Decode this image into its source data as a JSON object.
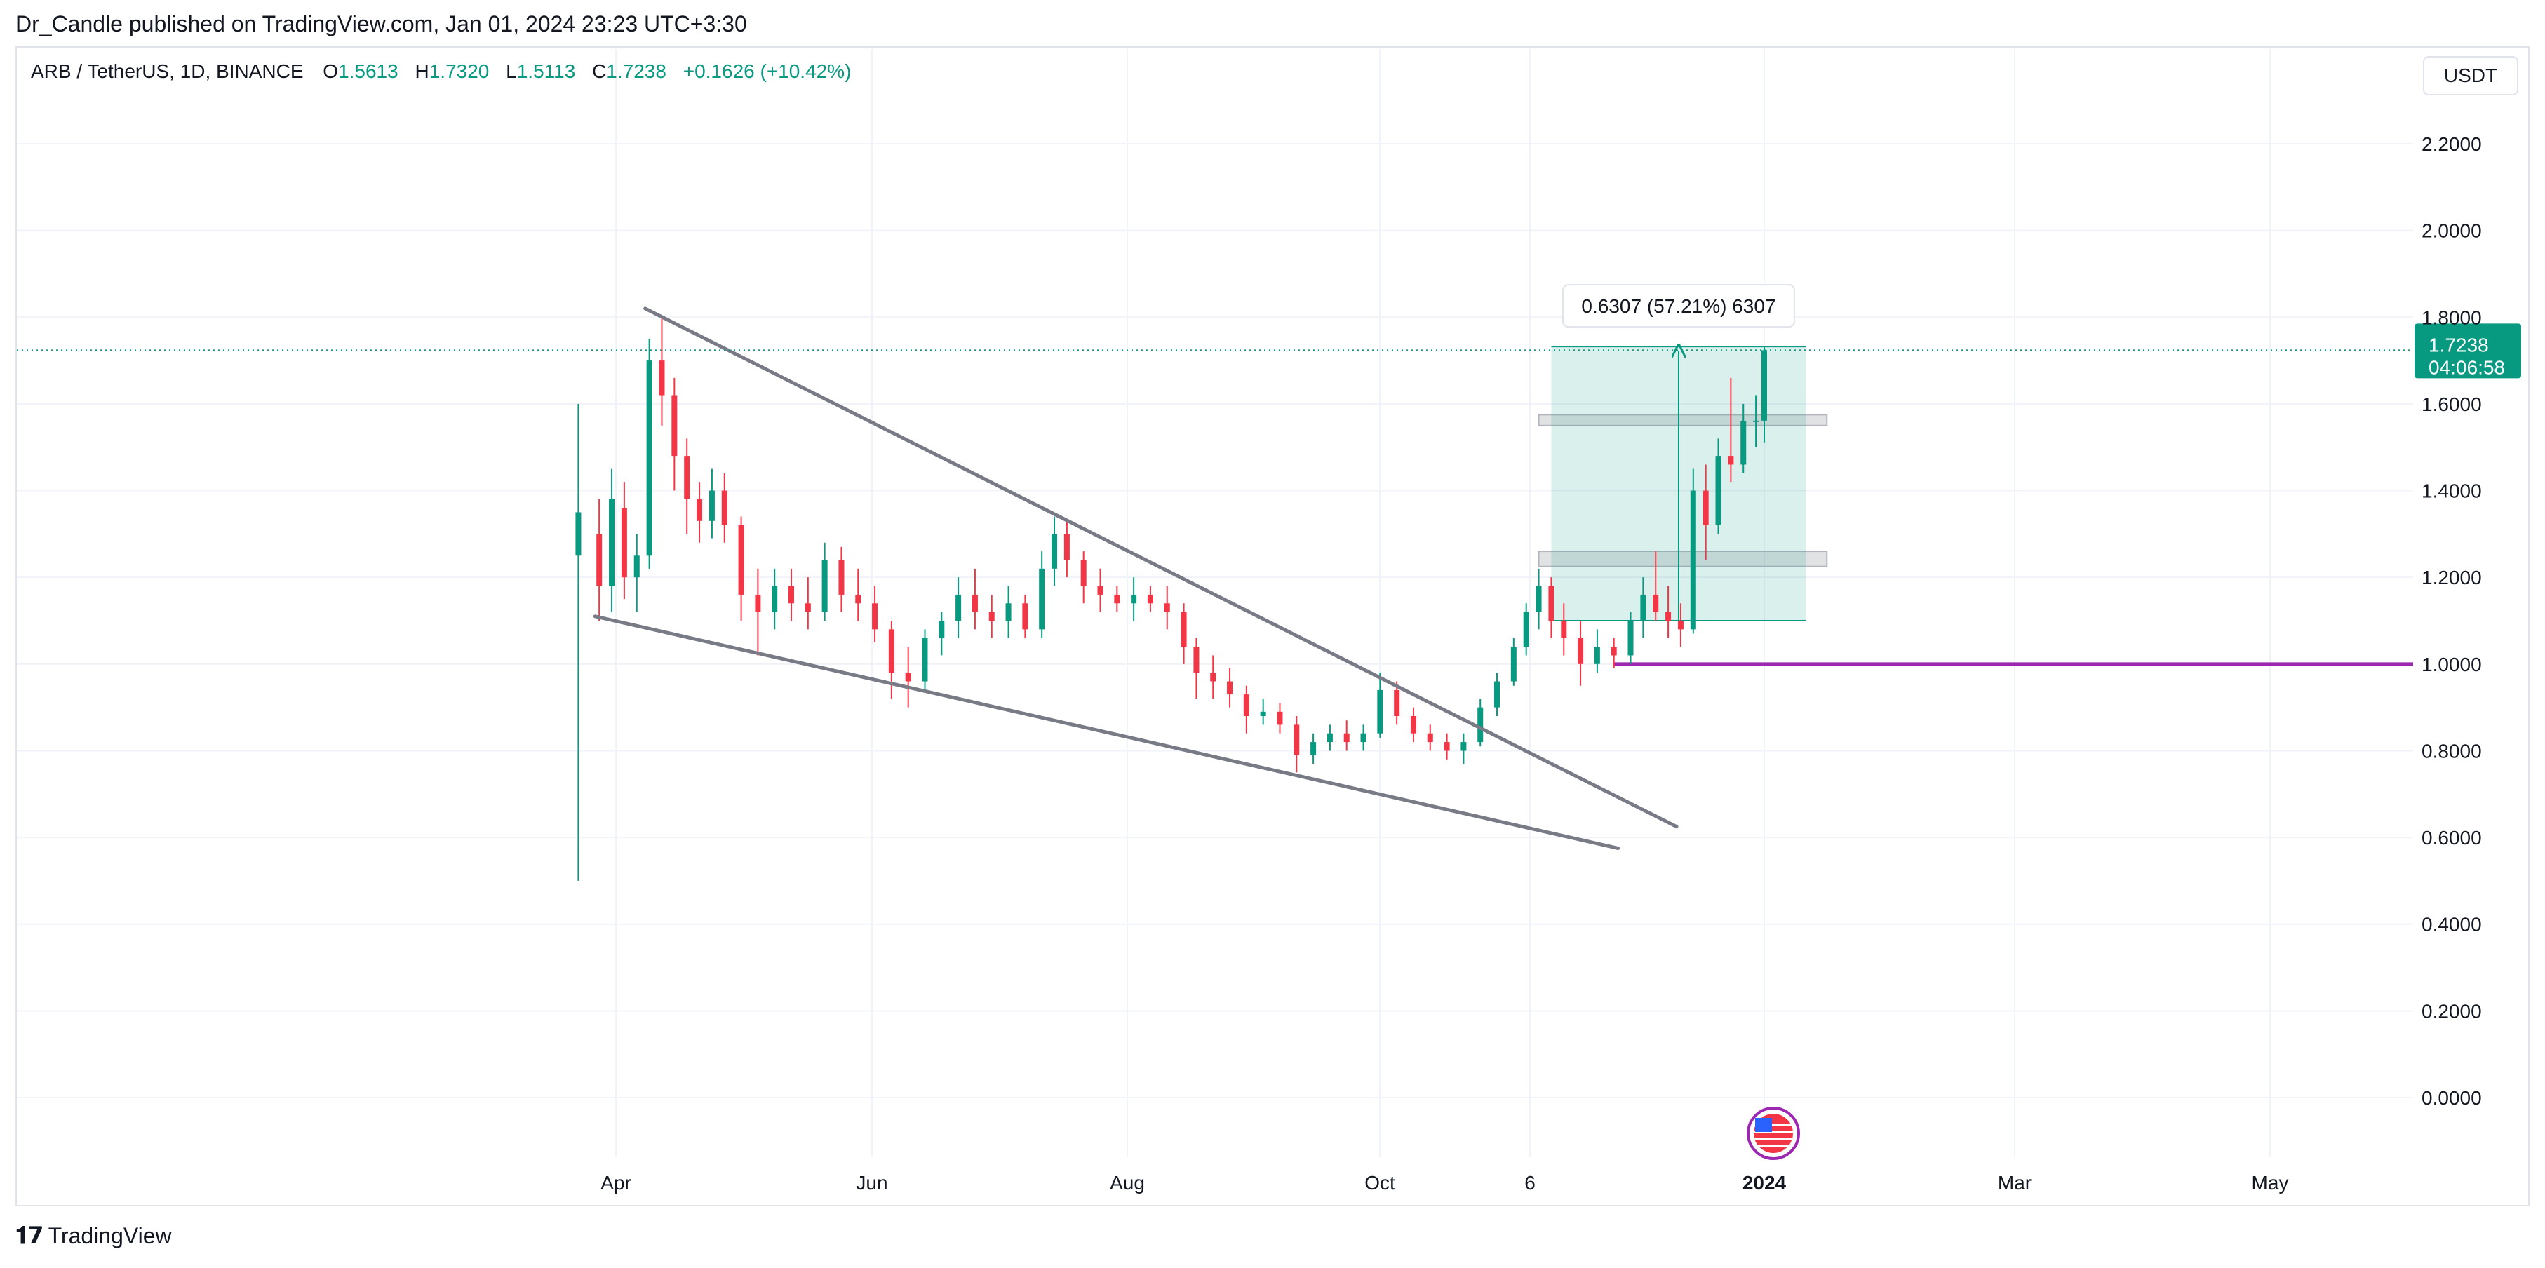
{
  "header": {
    "published": "Dr_Candle published on TradingView.com, Jan 01, 2024 23:23 UTC+3:30"
  },
  "legend": {
    "symbol": "ARB / TetherUS, 1D, BINANCE",
    "o_label": "O",
    "o_value": "1.5613",
    "h_label": "H",
    "h_value": "1.7320",
    "l_label": "L",
    "l_value": "1.5113",
    "c_label": "C",
    "c_value": "1.7238",
    "change": "+0.1626 (+10.42%)"
  },
  "currency": "USDT",
  "footer": {
    "brand": "TradingView"
  },
  "colors": {
    "up": "#089981",
    "down": "#f23645",
    "trendline": "#787b86",
    "support": "#9c27b0",
    "measure_fill": "#089981",
    "grid": "#f0f3fa"
  },
  "chart_data": {
    "type": "candlestick",
    "y_axis": {
      "ticks": [
        "2.2000",
        "2.0000",
        "1.8000",
        "1.6000",
        "1.4000",
        "1.2000",
        "1.0000",
        "0.8000",
        "0.6000",
        "0.4000",
        "0.2000",
        "0.0000"
      ],
      "range": [
        -0.16,
        2.4
      ]
    },
    "x_axis": {
      "ticks": [
        "Apr",
        "Jun",
        "Aug",
        "Oct",
        "6",
        "2024",
        "Mar",
        "May"
      ],
      "bold_tick": "2024"
    },
    "last_price": {
      "value": 1.7238,
      "label": "1.7238",
      "countdown": "04:06:58"
    },
    "measure": {
      "label": "0.6307 (57.21%) 6307",
      "from_price": 1.1,
      "to_price": 1.7323,
      "start_date": "2023-11-11",
      "end_date": "2024-01-11"
    },
    "zones": [
      {
        "from_price": 1.55,
        "to_price": 1.575,
        "start_date": "2023-11-08",
        "end_date": "2024-01-16"
      },
      {
        "from_price": 1.225,
        "to_price": 1.26,
        "start_date": "2023-11-08",
        "end_date": "2024-01-16"
      }
    ],
    "support_line": {
      "price": 1.0,
      "start_date": "2023-11-26"
    },
    "trendlines": [
      {
        "name": "upper",
        "points": [
          [
            "2023-04-08",
            1.82
          ],
          [
            "2023-12-11",
            0.625
          ]
        ]
      },
      {
        "name": "lower",
        "points": [
          [
            "2023-03-27",
            1.11
          ],
          [
            "2023-11-27",
            0.575
          ]
        ]
      }
    ],
    "candles": [
      {
        "date": "2023-03-23",
        "o": 1.25,
        "h": 1.6,
        "l": 0.5,
        "c": 1.35
      },
      {
        "date": "2023-03-28",
        "o": 1.3,
        "h": 1.38,
        "l": 1.1,
        "c": 1.18
      },
      {
        "date": "2023-03-31",
        "o": 1.18,
        "h": 1.45,
        "l": 1.12,
        "c": 1.38
      },
      {
        "date": "2023-04-03",
        "o": 1.36,
        "h": 1.42,
        "l": 1.15,
        "c": 1.2
      },
      {
        "date": "2023-04-06",
        "o": 1.2,
        "h": 1.3,
        "l": 1.12,
        "c": 1.25
      },
      {
        "date": "2023-04-09",
        "o": 1.25,
        "h": 1.75,
        "l": 1.22,
        "c": 1.7
      },
      {
        "date": "2023-04-12",
        "o": 1.7,
        "h": 1.8,
        "l": 1.55,
        "c": 1.62
      },
      {
        "date": "2023-04-15",
        "o": 1.62,
        "h": 1.66,
        "l": 1.4,
        "c": 1.48
      },
      {
        "date": "2023-04-18",
        "o": 1.48,
        "h": 1.52,
        "l": 1.3,
        "c": 1.38
      },
      {
        "date": "2023-04-21",
        "o": 1.38,
        "h": 1.42,
        "l": 1.28,
        "c": 1.33
      },
      {
        "date": "2023-04-24",
        "o": 1.33,
        "h": 1.45,
        "l": 1.29,
        "c": 1.4
      },
      {
        "date": "2023-04-27",
        "o": 1.4,
        "h": 1.44,
        "l": 1.28,
        "c": 1.32
      },
      {
        "date": "2023-05-01",
        "o": 1.32,
        "h": 1.34,
        "l": 1.1,
        "c": 1.16
      },
      {
        "date": "2023-05-05",
        "o": 1.16,
        "h": 1.22,
        "l": 1.02,
        "c": 1.12
      },
      {
        "date": "2023-05-09",
        "o": 1.12,
        "h": 1.22,
        "l": 1.08,
        "c": 1.18
      },
      {
        "date": "2023-05-13",
        "o": 1.18,
        "h": 1.22,
        "l": 1.1,
        "c": 1.14
      },
      {
        "date": "2023-05-17",
        "o": 1.14,
        "h": 1.2,
        "l": 1.08,
        "c": 1.12
      },
      {
        "date": "2023-05-21",
        "o": 1.12,
        "h": 1.28,
        "l": 1.1,
        "c": 1.24
      },
      {
        "date": "2023-05-25",
        "o": 1.24,
        "h": 1.27,
        "l": 1.12,
        "c": 1.16
      },
      {
        "date": "2023-05-29",
        "o": 1.16,
        "h": 1.22,
        "l": 1.1,
        "c": 1.14
      },
      {
        "date": "2023-06-02",
        "o": 1.14,
        "h": 1.18,
        "l": 1.05,
        "c": 1.08
      },
      {
        "date": "2023-06-06",
        "o": 1.08,
        "h": 1.1,
        "l": 0.92,
        "c": 0.98
      },
      {
        "date": "2023-06-10",
        "o": 0.98,
        "h": 1.04,
        "l": 0.9,
        "c": 0.96
      },
      {
        "date": "2023-06-14",
        "o": 0.96,
        "h": 1.08,
        "l": 0.94,
        "c": 1.06
      },
      {
        "date": "2023-06-18",
        "o": 1.06,
        "h": 1.12,
        "l": 1.02,
        "c": 1.1
      },
      {
        "date": "2023-06-22",
        "o": 1.1,
        "h": 1.2,
        "l": 1.06,
        "c": 1.16
      },
      {
        "date": "2023-06-26",
        "o": 1.16,
        "h": 1.22,
        "l": 1.08,
        "c": 1.12
      },
      {
        "date": "2023-06-30",
        "o": 1.12,
        "h": 1.16,
        "l": 1.06,
        "c": 1.1
      },
      {
        "date": "2023-07-04",
        "o": 1.1,
        "h": 1.18,
        "l": 1.06,
        "c": 1.14
      },
      {
        "date": "2023-07-08",
        "o": 1.14,
        "h": 1.16,
        "l": 1.06,
        "c": 1.08
      },
      {
        "date": "2023-07-12",
        "o": 1.08,
        "h": 1.26,
        "l": 1.06,
        "c": 1.22
      },
      {
        "date": "2023-07-15",
        "o": 1.22,
        "h": 1.34,
        "l": 1.18,
        "c": 1.3
      },
      {
        "date": "2023-07-18",
        "o": 1.3,
        "h": 1.33,
        "l": 1.2,
        "c": 1.24
      },
      {
        "date": "2023-07-22",
        "o": 1.24,
        "h": 1.26,
        "l": 1.14,
        "c": 1.18
      },
      {
        "date": "2023-07-26",
        "o": 1.18,
        "h": 1.22,
        "l": 1.12,
        "c": 1.16
      },
      {
        "date": "2023-07-30",
        "o": 1.16,
        "h": 1.18,
        "l": 1.12,
        "c": 1.14
      },
      {
        "date": "2023-08-03",
        "o": 1.14,
        "h": 1.2,
        "l": 1.1,
        "c": 1.16
      },
      {
        "date": "2023-08-07",
        "o": 1.16,
        "h": 1.18,
        "l": 1.12,
        "c": 1.14
      },
      {
        "date": "2023-08-11",
        "o": 1.14,
        "h": 1.18,
        "l": 1.08,
        "c": 1.12
      },
      {
        "date": "2023-08-15",
        "o": 1.12,
        "h": 1.14,
        "l": 1.0,
        "c": 1.04
      },
      {
        "date": "2023-08-18",
        "o": 1.04,
        "h": 1.06,
        "l": 0.92,
        "c": 0.98
      },
      {
        "date": "2023-08-22",
        "o": 0.98,
        "h": 1.02,
        "l": 0.92,
        "c": 0.96
      },
      {
        "date": "2023-08-26",
        "o": 0.96,
        "h": 0.99,
        "l": 0.9,
        "c": 0.93
      },
      {
        "date": "2023-08-30",
        "o": 0.93,
        "h": 0.95,
        "l": 0.84,
        "c": 0.88
      },
      {
        "date": "2023-09-03",
        "o": 0.88,
        "h": 0.92,
        "l": 0.86,
        "c": 0.89
      },
      {
        "date": "2023-09-07",
        "o": 0.89,
        "h": 0.91,
        "l": 0.84,
        "c": 0.86
      },
      {
        "date": "2023-09-11",
        "o": 0.86,
        "h": 0.88,
        "l": 0.75,
        "c": 0.79
      },
      {
        "date": "2023-09-15",
        "o": 0.79,
        "h": 0.84,
        "l": 0.77,
        "c": 0.82
      },
      {
        "date": "2023-09-19",
        "o": 0.82,
        "h": 0.86,
        "l": 0.8,
        "c": 0.84
      },
      {
        "date": "2023-09-23",
        "o": 0.84,
        "h": 0.87,
        "l": 0.8,
        "c": 0.82
      },
      {
        "date": "2023-09-27",
        "o": 0.82,
        "h": 0.86,
        "l": 0.8,
        "c": 0.84
      },
      {
        "date": "2023-10-01",
        "o": 0.84,
        "h": 0.98,
        "l": 0.83,
        "c": 0.94
      },
      {
        "date": "2023-10-05",
        "o": 0.94,
        "h": 0.96,
        "l": 0.86,
        "c": 0.88
      },
      {
        "date": "2023-10-09",
        "o": 0.88,
        "h": 0.9,
        "l": 0.82,
        "c": 0.84
      },
      {
        "date": "2023-10-13",
        "o": 0.84,
        "h": 0.86,
        "l": 0.8,
        "c": 0.82
      },
      {
        "date": "2023-10-17",
        "o": 0.82,
        "h": 0.84,
        "l": 0.78,
        "c": 0.8
      },
      {
        "date": "2023-10-21",
        "o": 0.8,
        "h": 0.84,
        "l": 0.77,
        "c": 0.82
      },
      {
        "date": "2023-10-25",
        "o": 0.82,
        "h": 0.92,
        "l": 0.81,
        "c": 0.9
      },
      {
        "date": "2023-10-29",
        "o": 0.9,
        "h": 0.98,
        "l": 0.88,
        "c": 0.96
      },
      {
        "date": "2023-11-02",
        "o": 0.96,
        "h": 1.06,
        "l": 0.95,
        "c": 1.04
      },
      {
        "date": "2023-11-05",
        "o": 1.04,
        "h": 1.14,
        "l": 1.02,
        "c": 1.12
      },
      {
        "date": "2023-11-08",
        "o": 1.12,
        "h": 1.22,
        "l": 1.08,
        "c": 1.18
      },
      {
        "date": "2023-11-11",
        "o": 1.18,
        "h": 1.2,
        "l": 1.06,
        "c": 1.1
      },
      {
        "date": "2023-11-14",
        "o": 1.1,
        "h": 1.14,
        "l": 1.02,
        "c": 1.06
      },
      {
        "date": "2023-11-18",
        "o": 1.06,
        "h": 1.1,
        "l": 0.95,
        "c": 1.0
      },
      {
        "date": "2023-11-22",
        "o": 1.0,
        "h": 1.08,
        "l": 0.98,
        "c": 1.04
      },
      {
        "date": "2023-11-26",
        "o": 1.04,
        "h": 1.06,
        "l": 0.99,
        "c": 1.02
      },
      {
        "date": "2023-11-30",
        "o": 1.02,
        "h": 1.12,
        "l": 1.0,
        "c": 1.1
      },
      {
        "date": "2023-12-03",
        "o": 1.1,
        "h": 1.2,
        "l": 1.06,
        "c": 1.16
      },
      {
        "date": "2023-12-06",
        "o": 1.16,
        "h": 1.26,
        "l": 1.1,
        "c": 1.12
      },
      {
        "date": "2023-12-09",
        "o": 1.12,
        "h": 1.18,
        "l": 1.06,
        "c": 1.1
      },
      {
        "date": "2023-12-12",
        "o": 1.1,
        "h": 1.14,
        "l": 1.04,
        "c": 1.08
      },
      {
        "date": "2023-12-15",
        "o": 1.08,
        "h": 1.45,
        "l": 1.07,
        "c": 1.4
      },
      {
        "date": "2023-12-18",
        "o": 1.4,
        "h": 1.46,
        "l": 1.24,
        "c": 1.32
      },
      {
        "date": "2023-12-21",
        "o": 1.32,
        "h": 1.52,
        "l": 1.3,
        "c": 1.48
      },
      {
        "date": "2023-12-24",
        "o": 1.48,
        "h": 1.66,
        "l": 1.42,
        "c": 1.46
      },
      {
        "date": "2023-12-27",
        "o": 1.46,
        "h": 1.6,
        "l": 1.44,
        "c": 1.56
      },
      {
        "date": "2023-12-30",
        "o": 1.56,
        "h": 1.62,
        "l": 1.5,
        "c": 1.5613
      },
      {
        "date": "2024-01-01",
        "o": 1.5613,
        "h": 1.732,
        "l": 1.5113,
        "c": 1.7238
      }
    ]
  }
}
